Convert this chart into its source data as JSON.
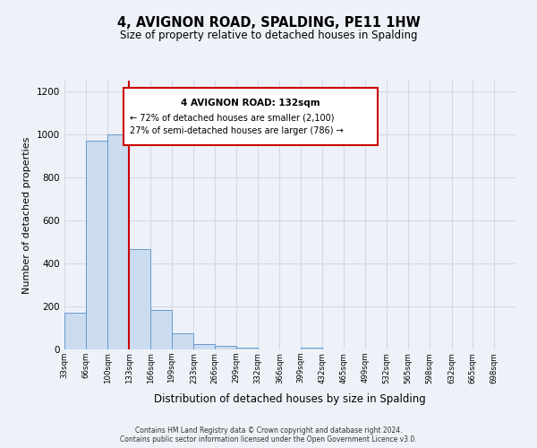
{
  "title": "4, AVIGNON ROAD, SPALDING, PE11 1HW",
  "subtitle": "Size of property relative to detached houses in Spalding",
  "xlabel": "Distribution of detached houses by size in Spalding",
  "ylabel": "Number of detached properties",
  "bar_lefts": [
    33,
    66,
    100,
    133,
    166,
    199,
    233,
    266,
    299,
    332,
    366,
    399,
    432,
    465,
    499,
    532,
    565,
    598,
    632,
    665
  ],
  "bar_widths": [
    33,
    34,
    33,
    33,
    33,
    34,
    33,
    33,
    33,
    34,
    33,
    33,
    33,
    34,
    33,
    33,
    33,
    34,
    33,
    33
  ],
  "bar_heights": [
    170,
    970,
    1000,
    465,
    185,
    75,
    25,
    15,
    10,
    0,
    0,
    10,
    0,
    0,
    0,
    0,
    0,
    0,
    0,
    0
  ],
  "bar_color": "#ccdcf0",
  "bar_edge_color": "#6699cc",
  "property_line_x": 133,
  "property_line_color": "#cc0000",
  "annotation_text_line1": "4 AVIGNON ROAD: 132sqm",
  "annotation_text_line2": "← 72% of detached houses are smaller (2,100)",
  "annotation_text_line3": "27% of semi-detached houses are larger (786) →",
  "annotation_box_color": "#cc0000",
  "tick_labels": [
    "33sqm",
    "66sqm",
    "100sqm",
    "133sqm",
    "166sqm",
    "199sqm",
    "233sqm",
    "266sqm",
    "299sqm",
    "332sqm",
    "366sqm",
    "399sqm",
    "432sqm",
    "465sqm",
    "499sqm",
    "532sqm",
    "565sqm",
    "598sqm",
    "632sqm",
    "665sqm",
    "698sqm"
  ],
  "tick_positions": [
    33,
    66,
    100,
    133,
    166,
    199,
    233,
    266,
    299,
    332,
    366,
    399,
    432,
    465,
    499,
    532,
    565,
    598,
    632,
    665,
    698
  ],
  "xlim": [
    33,
    731
  ],
  "ylim": [
    0,
    1250
  ],
  "yticks": [
    0,
    200,
    400,
    600,
    800,
    1000,
    1200
  ],
  "footer_line1": "Contains HM Land Registry data © Crown copyright and database right 2024.",
  "footer_line2": "Contains public sector information licensed under the Open Government Licence v3.0.",
  "background_color": "#eef2f8",
  "grid_color": "#d0d8e8"
}
